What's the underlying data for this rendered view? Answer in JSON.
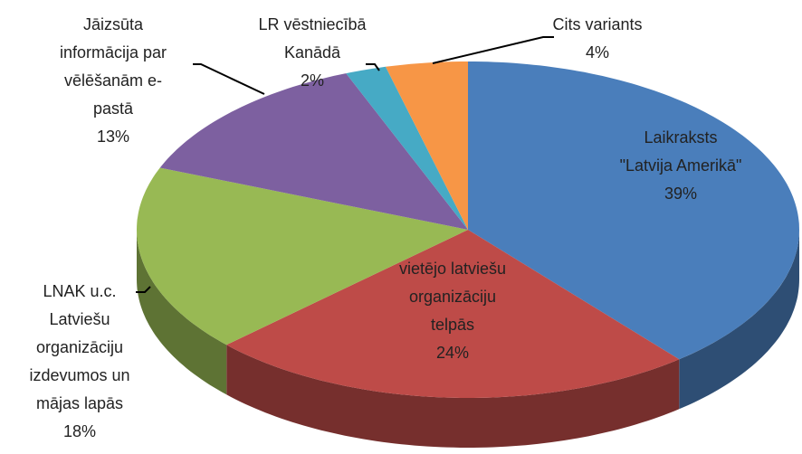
{
  "chart_data": {
    "type": "pie3d",
    "categories": [
      "Laikraksts\n\"Latvija Amerikā\"",
      "vietējo latviešu\norganizāciju\ntelpās",
      "LNAK u.c.\nLatviešu\norganizāciju\nizdevumos un\nmājas lapās",
      "Jāizsūta\ninformācija par\nvēlēšanām e-\npastā",
      "LR vēstniecībā\nKanādā",
      "Cits variants"
    ],
    "values": [
      39,
      24,
      18,
      13,
      2,
      4
    ],
    "value_labels": [
      "39%",
      "24%",
      "18%",
      "13%",
      "2%",
      "4%"
    ],
    "colors": [
      "#4a7ebb",
      "#be4b48",
      "#98b954",
      "#7d60a0",
      "#46aac5",
      "#f79646"
    ]
  }
}
